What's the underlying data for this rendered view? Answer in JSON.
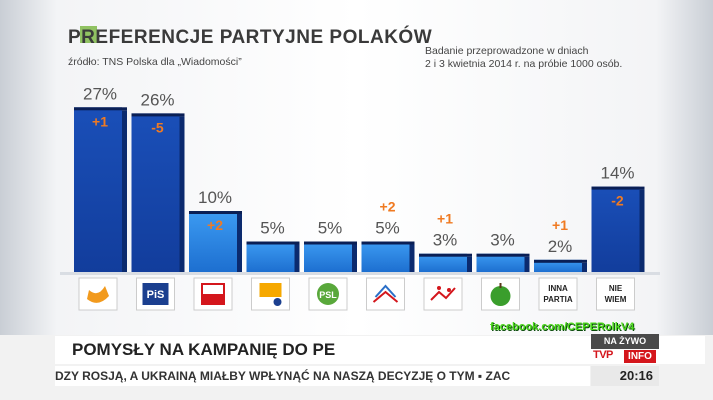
{
  "title": "PREFERENCJE PARTYJNE POLAKÓW",
  "source": "źródło: TNS Polska dla „Wiadomości”",
  "note": {
    "line1": "Badanie przeprowadzone w dniach",
    "line2": "2 i 3 kwietnia 2014 r. na próbie 1000 osób."
  },
  "colors": {
    "bar_dark": "#123d9c",
    "bar_light": "#2a8bea",
    "change": "#f07a21",
    "percent": "#555555",
    "green_logo": "#6fb030"
  },
  "chart_data": {
    "type": "bar",
    "title": "PREFERENCJE PARTYJNE POLAKÓW",
    "categories": [
      "PO",
      "PiS",
      "SLD",
      "Twój Ruch",
      "PSL",
      "Solidarna Polska",
      "Polska Razem",
      "Kongres Nowej Prawicy",
      "INNA PARTIA",
      "NIE WIEM"
    ],
    "values": [
      27,
      26,
      10,
      5,
      5,
      5,
      3,
      3,
      2,
      14
    ],
    "value_labels": [
      "27%",
      "26%",
      "10%",
      "5%",
      "5%",
      "5%",
      "3%",
      "3%",
      "2%",
      "14%"
    ],
    "changes": [
      "+1",
      "-5",
      "+2",
      "",
      "",
      "+2",
      "+1",
      "",
      "+1",
      "-2"
    ],
    "ylim": [
      0,
      30
    ],
    "icons": [
      "po-logo-icon",
      "pis-logo-icon",
      "sld-logo-icon",
      "twoj-ruch-logo-icon",
      "psl-logo-icon",
      "solidarna-polska-logo-icon",
      "polska-razem-logo-icon",
      "kongres-nowej-prawicy-logo-icon",
      "",
      ""
    ],
    "tile_texts": [
      "",
      "",
      "",
      "",
      "",
      "",
      "",
      "",
      [
        "INNA",
        "PARTIA"
      ],
      [
        "NIE",
        "WIEM"
      ]
    ]
  },
  "watermark": "facebook.com/CEPERolkV4",
  "headline": "POMYSŁY NA KAMPANIĘ DO PE",
  "ticker": "DZY ROSJĄ, A UKRAINĄ MIAŁBY WPŁYNĄĆ NA NASZĄ DECYZJĘ O TYM ▪ ZAC",
  "live": "NA ŻYWO",
  "logo": {
    "tvp": "TVP",
    "info": "INFO"
  },
  "clock": "20:16"
}
